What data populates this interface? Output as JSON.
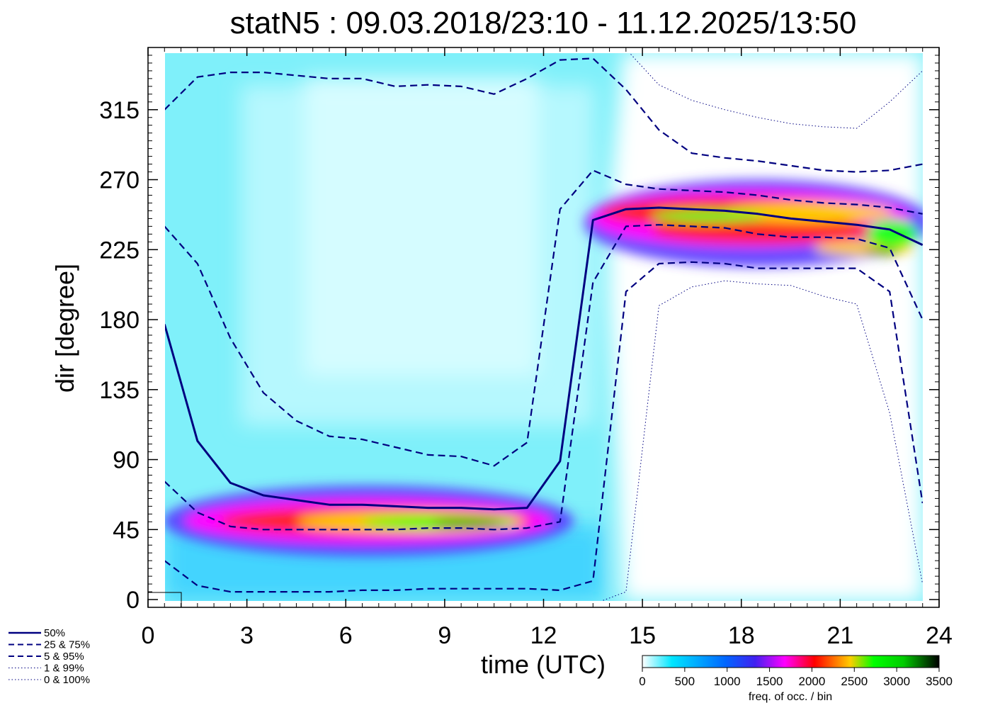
{
  "chart_data": {
    "type": "heatmap",
    "title": "statN5 : 09.03.2018/23:10 - 11.12.2025/13:50",
    "xlabel": "time (UTC)",
    "ylabel": "dir [degree]",
    "xlim": [
      0,
      24
    ],
    "ylim": [
      -5,
      355
    ],
    "x_ticks": [
      "0",
      "3",
      "6",
      "9",
      "12",
      "15",
      "18",
      "21",
      "24"
    ],
    "y_ticks": [
      "0",
      "45",
      "90",
      "135",
      "180",
      "225",
      "270",
      "315"
    ],
    "colorbar": {
      "label": "freq. of occ. / bin",
      "ticks": [
        "0",
        "500",
        "1000",
        "1500",
        "2000",
        "2500",
        "3000",
        "3500"
      ],
      "range": [
        0,
        3500
      ],
      "colors": [
        "#ffffff",
        "#00e6ff",
        "#0066ff",
        "#4020f0",
        "#ff00ff",
        "#ff0000",
        "#ffcc00",
        "#00ff00",
        "#00cc00",
        "#000000"
      ]
    },
    "x": [
      0.5,
      1.5,
      2.5,
      3.5,
      4.5,
      5.5,
      6.5,
      7.5,
      8.5,
      9.5,
      10.5,
      11.5,
      12.5,
      13.5,
      14.5,
      15.5,
      16.5,
      17.5,
      18.5,
      19.5,
      20.5,
      21.5,
      22.5,
      23.5
    ],
    "series": [
      {
        "name": "50%",
        "style": "solid",
        "values": [
          177,
          102,
          75,
          67,
          64,
          61,
          61,
          60,
          59,
          59,
          58,
          59,
          89,
          244,
          251,
          252,
          251,
          250,
          248,
          245,
          243,
          241,
          238,
          228
        ]
      },
      {
        "name": "25 &  75%",
        "style": "dashed",
        "group": "q25",
        "values": [
          76,
          56,
          47,
          45,
          45,
          45,
          45,
          45,
          46,
          46,
          45,
          46,
          50,
          204,
          240,
          241,
          240,
          239,
          235,
          233,
          233,
          232,
          226,
          180
        ]
      },
      {
        "name": "25 &  75%",
        "style": "dashed",
        "group": "q75",
        "values": [
          240,
          216,
          168,
          133,
          115,
          105,
          103,
          98,
          93,
          92,
          86,
          101,
          251,
          276,
          267,
          264,
          263,
          262,
          260,
          257,
          255,
          254,
          252,
          248
        ]
      },
      {
        "name": "5 &  95%",
        "style": "dashed",
        "group": "q05",
        "values": [
          25,
          9,
          5,
          5,
          5,
          5,
          6,
          6,
          7,
          7,
          7,
          7,
          6,
          12,
          198,
          216,
          217,
          216,
          213,
          213,
          213,
          213,
          198,
          62
        ]
      },
      {
        "name": "5 &  95%",
        "style": "dashed",
        "group": "q95",
        "values": [
          315,
          336,
          339,
          339,
          337,
          335,
          335,
          330,
          331,
          330,
          325,
          335,
          347,
          348,
          328,
          302,
          287,
          284,
          282,
          279,
          276,
          275,
          276,
          280
        ]
      },
      {
        "name": "1 &  99%",
        "style": "dotted",
        "group": "q01",
        "values": [
          -3,
          -5,
          -6,
          -6,
          -6,
          -6,
          -6,
          -6,
          -6,
          -6,
          -6,
          -6,
          -6,
          -3,
          5,
          189,
          201,
          205,
          203,
          202,
          195,
          190,
          120,
          10
        ]
      },
      {
        "name": "1 &  99%",
        "style": "dotted",
        "group": "q99",
        "values": [
          355,
          355,
          355,
          355,
          355,
          355,
          355,
          355,
          355,
          355,
          355,
          355,
          355,
          355,
          354,
          331,
          321,
          315,
          310,
          306,
          304,
          303,
          320,
          340
        ]
      }
    ],
    "legend": [
      "50%",
      "25 &  75%",
      "5 &  95%",
      "1 &  99%",
      "0 & 100%"
    ],
    "legend_position": "bottom-left",
    "grid": false
  }
}
